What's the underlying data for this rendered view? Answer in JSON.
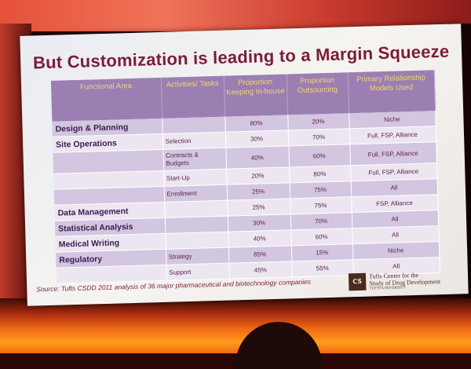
{
  "slide": {
    "title": "But Customization is leading to a Margin Squeeze",
    "source": "Source: Tufts CSDD 2011 analysis of 36 major pharmaceutical and biotechnology companies",
    "logo_mark": "CS",
    "logo_line1": "Tufts Center for the",
    "logo_line2": "Study of Drug Development",
    "logo_line3": "TUFTS UNIVERSITY"
  },
  "table": {
    "headers": [
      "Functional Area",
      "Activities/ Tasks",
      "Proportion Keeping In-house",
      "Proportion Outsourcing",
      "Primary Relationship Models Used"
    ],
    "rows": [
      {
        "area": "Design & Planning",
        "task": "",
        "inhouse": "80%",
        "outsourcing": "20%",
        "models": "Niche"
      },
      {
        "area": "Site Operations",
        "task": "Selection",
        "inhouse": "30%",
        "outsourcing": "70%",
        "models": "Full, FSP, Alliance"
      },
      {
        "area": "",
        "task": "Contracts & Budgets",
        "inhouse": "40%",
        "outsourcing": "60%",
        "models": "Full, FSP, Alliance"
      },
      {
        "area": "",
        "task": "Start-Up",
        "inhouse": "20%",
        "outsourcing": "80%",
        "models": "Full, FSP, Alliance"
      },
      {
        "area": "",
        "task": "Enrollment",
        "inhouse": "25%",
        "outsourcing": "75%",
        "models": "All"
      },
      {
        "area": "Data Management",
        "task": "",
        "inhouse": "25%",
        "outsourcing": "75%",
        "models": "FSP, Alliance"
      },
      {
        "area": "Statistical Analysis",
        "task": "",
        "inhouse": "30%",
        "outsourcing": "70%",
        "models": "All"
      },
      {
        "area": "Medical Writing",
        "task": "",
        "inhouse": "40%",
        "outsourcing": "60%",
        "models": "All"
      },
      {
        "area": "Regulatory",
        "task": "Strategy",
        "inhouse": "85%",
        "outsourcing": "15%",
        "models": "Niche"
      },
      {
        "area": "",
        "task": "Support",
        "inhouse": "45%",
        "outsourcing": "55%",
        "models": "All"
      }
    ]
  }
}
